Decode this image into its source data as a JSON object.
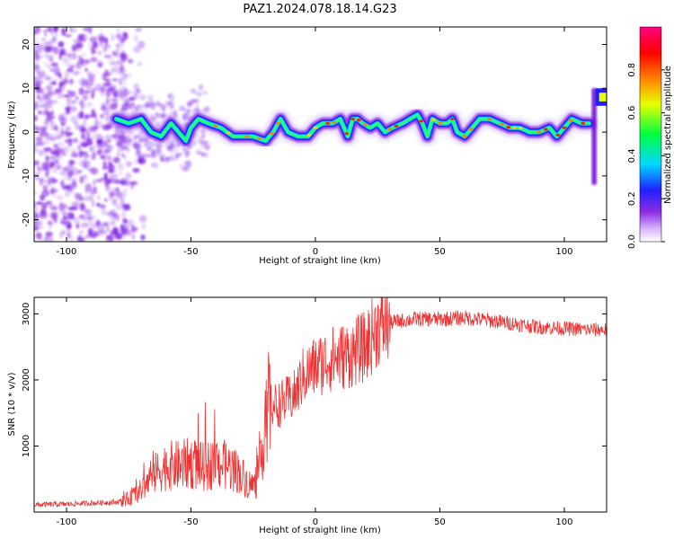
{
  "title": "PAZ1.2024.078.18.14.G23",
  "chart_data": [
    {
      "type": "heatmap",
      "xlabel": "Height of straight line (km)",
      "ylabel": "Frequency (Hz)",
      "xlim": [
        -113,
        117
      ],
      "ylim": [
        -25,
        24
      ],
      "x_ticks": [
        "-100",
        "-50",
        "0",
        "50",
        "100"
      ],
      "y_ticks": [
        "-20",
        "-10",
        "0",
        "10",
        "20"
      ],
      "colorbar": {
        "label": "Normalized spectral amplitude",
        "range": [
          0,
          1
        ],
        "ticks": [
          "0.0",
          "0.2",
          "0.4",
          "0.6",
          "0.8"
        ],
        "colormap": [
          "#ffffff",
          "#8a2be2",
          "#2020ff",
          "#00d8ff",
          "#00ff40",
          "#e8ff00",
          "#ff8000",
          "#ff0000",
          "#ff0080"
        ]
      },
      "ridge": {
        "x": [
          -80,
          -75,
          -70,
          -66,
          -62,
          -58,
          -55,
          -52,
          -50,
          -47,
          -43,
          -38,
          -33,
          -28,
          -25,
          -20,
          -17,
          -14,
          -11,
          -7,
          -3,
          0,
          3,
          7,
          10,
          13,
          15,
          17,
          19,
          22,
          25,
          28,
          31,
          35,
          38,
          41,
          43,
          45,
          47,
          50,
          53,
          55,
          57,
          60,
          63,
          66,
          70,
          74,
          78,
          82,
          86,
          90,
          94,
          97,
          100,
          103,
          107,
          110
        ],
        "y": [
          3,
          2,
          3,
          0,
          -1,
          2,
          0,
          -2,
          1,
          3,
          2,
          1,
          -1,
          -1,
          -1,
          -2,
          0,
          3,
          0,
          -1,
          -1,
          1,
          2,
          2,
          3,
          -1,
          3,
          3,
          2,
          1,
          2,
          0,
          1,
          2,
          3,
          4,
          2,
          -1,
          3,
          2,
          2,
          3,
          0,
          -1,
          1,
          3,
          3,
          2,
          1,
          1,
          0,
          0,
          1,
          -1,
          1,
          3,
          2,
          2
        ]
      },
      "noise_region_x": [
        -113,
        -75
      ],
      "edge_feature": {
        "x": [
          111,
          117
        ],
        "y": [
          -12,
          10
        ]
      }
    },
    {
      "type": "line",
      "xlabel": "Height of straight line (km)",
      "ylabel": "SNR (10 * v/v)",
      "xlim": [
        -113,
        117
      ],
      "ylim": [
        0,
        3250
      ],
      "x_ticks": [
        "-100",
        "-50",
        "0",
        "50",
        "100"
      ],
      "y_ticks": [
        "1000",
        "2000",
        "3000"
      ],
      "color": "#ee3333",
      "series": [
        {
          "x": [
            -113,
            -100,
            -80,
            -75,
            -70,
            -65,
            -60,
            -55,
            -50,
            -45,
            -40,
            -35,
            -30,
            -27,
            -24,
            -22,
            -20,
            -18,
            -15,
            -12,
            -10,
            -8,
            -5,
            0,
            5,
            10,
            15,
            17,
            20,
            25,
            30,
            35,
            40,
            45,
            50,
            55,
            60,
            70,
            80,
            90,
            100,
            110,
            117
          ],
          "y": [
            110,
            120,
            150,
            200,
            330,
            560,
            700,
            700,
            740,
            680,
            740,
            700,
            580,
            430,
            400,
            720,
            1550,
            1600,
            1620,
            1680,
            1720,
            1780,
            2050,
            2200,
            2300,
            2350,
            2400,
            2450,
            2500,
            2800,
            2870,
            2900,
            2920,
            2920,
            2920,
            2930,
            2940,
            2900,
            2850,
            2800,
            2780,
            2760,
            2760
          ]
        }
      ]
    }
  ]
}
